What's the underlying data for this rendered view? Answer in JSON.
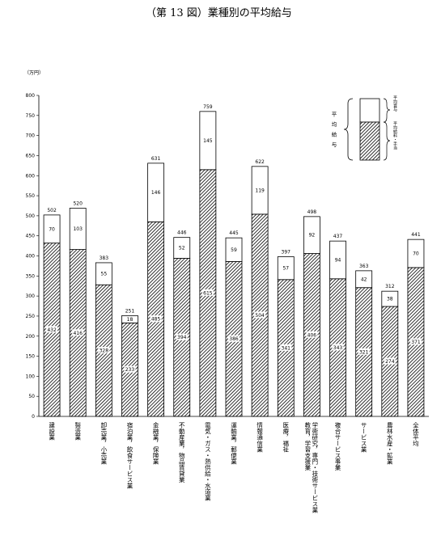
{
  "chart_data": {
    "type": "bar",
    "stacked": true,
    "title": "（第 13 図）業種別の平均給与",
    "unit_label": "（万円）",
    "ylim": [
      0,
      800
    ],
    "ytick_step": 50,
    "yticks": [
      "0",
      "50",
      "100",
      "150",
      "200",
      "250",
      "300",
      "350",
      "400",
      "450",
      "500",
      "550",
      "600",
      "650",
      "700",
      "750",
      "800"
    ],
    "categories": [
      "建設業",
      "製造業",
      "卸売業，小売業",
      "宿泊業，飲食サービス業",
      "金融業，保険業",
      "不動産業，物品賃貸業",
      "電気・ガス・熱供給・水道業",
      "運輸業，郵便業",
      "情報通信業",
      "医療，福祉",
      "学術研究，専門・技術サービス業、教育，学習支援業",
      "複合サービス事業",
      "サービス業",
      "農林水産・鉱業",
      "全体平均"
    ],
    "series": [
      {
        "name": "平均給料・手当",
        "values": [
          432,
          416,
          328,
          233,
          485,
          394,
          615,
          386,
          504,
          341,
          406,
          343,
          321,
          274,
          371
        ]
      },
      {
        "name": "平均賞与",
        "values": [
          70,
          103,
          55,
          18,
          146,
          52,
          145,
          59,
          119,
          57,
          92,
          94,
          42,
          38,
          70
        ]
      }
    ],
    "totals": [
      502,
      520,
      383,
      251,
      631,
      446,
      759,
      445,
      622,
      397,
      498,
      437,
      363,
      312,
      441
    ],
    "legend": {
      "brace_label": "平均給与",
      "items": [
        "平均賞与",
        "平均給料・手当"
      ],
      "position": "top-right"
    },
    "grid": false
  }
}
